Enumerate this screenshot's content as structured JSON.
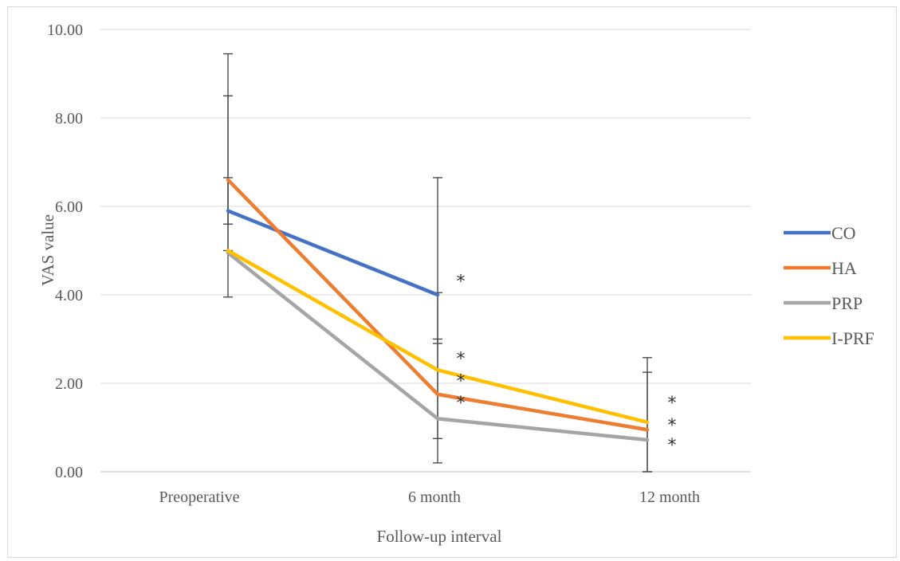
{
  "chart_data": {
    "type": "line",
    "xlabel": "Follow-up interval",
    "ylabel": "VAS value",
    "categories": [
      "Preoperative",
      "6 month",
      "12 month"
    ],
    "ylim": [
      0,
      10
    ],
    "yticks": [
      "0.00",
      "2.00",
      "4.00",
      "6.00",
      "8.00",
      "10.00"
    ],
    "grid": true,
    "legend_position": "right",
    "series": [
      {
        "name": "CO",
        "color": "#4472C4",
        "values": [
          5.9,
          4.0,
          null
        ]
      },
      {
        "name": "HA",
        "color": "#ED7D31",
        "values": [
          6.6,
          1.75,
          0.95
        ]
      },
      {
        "name": "PRP",
        "color": "#A5A5A5",
        "values": [
          4.95,
          1.2,
          0.72
        ]
      },
      {
        "name": "I-PRF",
        "color": "#FFC000",
        "values": [
          5.0,
          2.3,
          1.12
        ]
      }
    ],
    "error_bars": [
      {
        "category": "Preoperative",
        "low": 3.95,
        "high": 9.45
      },
      {
        "category": "Preoperative",
        "low": 5.6,
        "high": 8.5
      },
      {
        "category": "Preoperative",
        "low": 5.0,
        "high": 6.65
      },
      {
        "category": "6 month",
        "low": 0.2,
        "high": 6.65
      },
      {
        "category": "6 month",
        "low": 0.75,
        "high": 4.05
      },
      {
        "category": "6 month",
        "low": 2.9,
        "high": 3.0
      },
      {
        "category": "12 month",
        "low": 0.0,
        "high": 2.58
      },
      {
        "category": "12 month",
        "low": 0.0,
        "high": 2.25
      }
    ],
    "annotations": [
      {
        "text": "*",
        "category": "6 month",
        "y": 4.35
      },
      {
        "text": "*",
        "category": "6 month",
        "y": 2.6
      },
      {
        "text": "*",
        "category": "6 month",
        "y": 2.1
      },
      {
        "text": "*",
        "category": "6 month",
        "y": 1.6
      },
      {
        "text": "*",
        "category": "12 month",
        "y": 1.6
      },
      {
        "text": "*",
        "category": "12 month",
        "y": 1.1
      },
      {
        "text": "*",
        "category": "12 month",
        "y": 0.65
      }
    ]
  }
}
